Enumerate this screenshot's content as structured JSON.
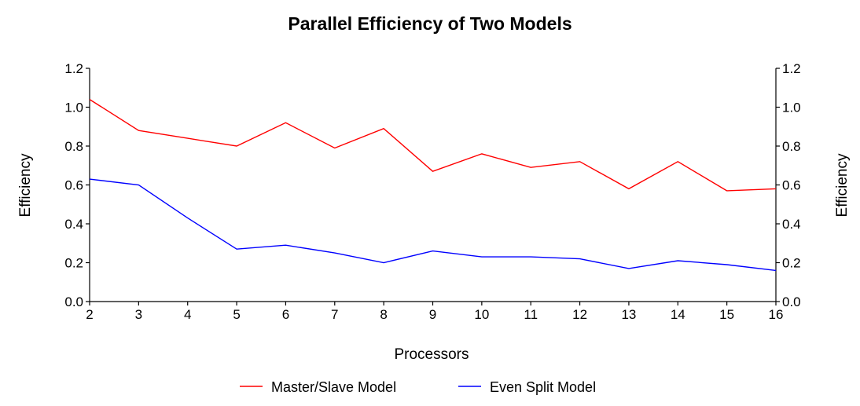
{
  "chart_data": {
    "type": "line",
    "title": "Parallel Efficiency of Two Models",
    "xlabel": "Processors",
    "ylabel": "Efficiency",
    "y2label": "Efficiency",
    "x": [
      2,
      3,
      4,
      5,
      6,
      7,
      8,
      9,
      10,
      11,
      12,
      13,
      14,
      15,
      16
    ],
    "xlim": [
      2,
      16
    ],
    "ylim": [
      0,
      1.2
    ],
    "yticks": [
      "0.0",
      "0.2",
      "0.4",
      "0.6",
      "0.8",
      "1.0",
      "1.2"
    ],
    "grid": false,
    "legend_position": "bottom",
    "series": [
      {
        "name": "Master/Slave Model",
        "color": "#ff0000",
        "values": [
          1.04,
          0.88,
          0.84,
          0.8,
          0.92,
          0.79,
          0.89,
          0.67,
          0.76,
          0.69,
          0.72,
          0.58,
          0.72,
          0.57,
          0.58
        ]
      },
      {
        "name": "Even Split Model",
        "color": "#0000ff",
        "values": [
          0.63,
          0.6,
          0.43,
          0.27,
          0.29,
          0.25,
          0.2,
          0.26,
          0.23,
          0.23,
          0.22,
          0.17,
          0.21,
          0.19,
          0.16
        ]
      }
    ]
  }
}
